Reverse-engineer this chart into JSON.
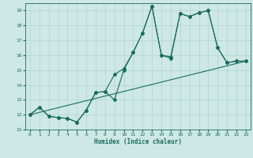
{
  "xlabel": "Humidex (Indice chaleur)",
  "xlim": [
    -0.5,
    23.5
  ],
  "ylim": [
    11,
    19.5
  ],
  "yticks": [
    11,
    12,
    13,
    14,
    15,
    16,
    17,
    18,
    19
  ],
  "xticks": [
    0,
    1,
    2,
    3,
    4,
    5,
    6,
    7,
    8,
    9,
    10,
    11,
    12,
    13,
    14,
    15,
    16,
    17,
    18,
    19,
    20,
    21,
    22,
    23
  ],
  "bg_color": "#cde8e5",
  "line_color": "#1a6b60",
  "grid_color": "#afd4d0",
  "series1_x": [
    0,
    1,
    2,
    3,
    4,
    5,
    6,
    7,
    8,
    9,
    10,
    11,
    12,
    13,
    14,
    15,
    16,
    17,
    18,
    19,
    20,
    21,
    22,
    23
  ],
  "series1_y": [
    12.0,
    12.5,
    11.9,
    11.8,
    11.75,
    11.5,
    12.3,
    13.5,
    13.55,
    13.0,
    15.0,
    16.2,
    17.5,
    19.3,
    16.0,
    15.8,
    18.8,
    18.6,
    18.85,
    19.0,
    16.5,
    15.5,
    15.6,
    15.6
  ],
  "series2_x": [
    0,
    1,
    2,
    3,
    4,
    5,
    6,
    7,
    8,
    9,
    10,
    11,
    12,
    13,
    14,
    15,
    16,
    17,
    18,
    19,
    20,
    21,
    22,
    23
  ],
  "series2_y": [
    12.0,
    12.5,
    11.9,
    11.8,
    11.75,
    11.5,
    12.3,
    13.5,
    13.55,
    14.7,
    15.1,
    16.2,
    17.5,
    19.3,
    16.0,
    15.9,
    18.8,
    18.6,
    18.85,
    19.0,
    16.5,
    15.5,
    15.6,
    15.6
  ],
  "series3_x": [
    0,
    23
  ],
  "series3_y": [
    12.0,
    15.6
  ]
}
